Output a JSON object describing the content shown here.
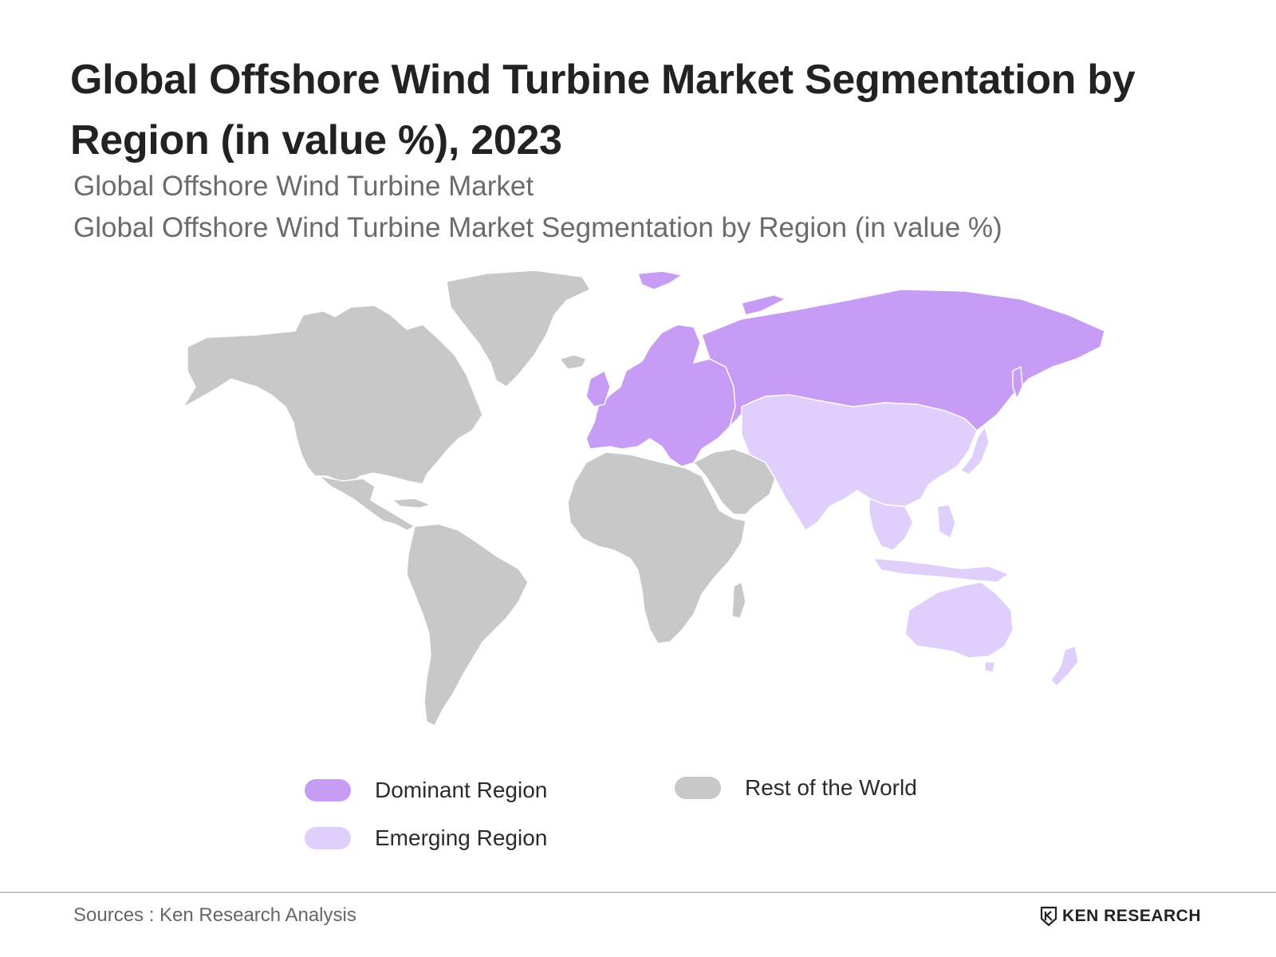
{
  "header": {
    "title": "Global Offshore Wind Turbine Market Segmentation by Region (in value %), 2023",
    "subtitle_1": "Global Offshore Wind Turbine Market",
    "subtitle_2": "Global Offshore Wind Turbine Market Segmentation by Region (in value %)"
  },
  "colors": {
    "dominant": "#c79cf5",
    "emerging": "#e0cffc",
    "rest": "#c8c8c8",
    "border": "#ffffff"
  },
  "map": {
    "projection": "world",
    "regions": [
      {
        "name": "North America",
        "category": "rest"
      },
      {
        "name": "Greenland",
        "category": "rest"
      },
      {
        "name": "Central America & Caribbean",
        "category": "rest"
      },
      {
        "name": "South America",
        "category": "rest"
      },
      {
        "name": "Africa",
        "category": "rest"
      },
      {
        "name": "Middle East",
        "category": "rest"
      },
      {
        "name": "Europe",
        "category": "dominant"
      },
      {
        "name": "Russia",
        "category": "dominant"
      },
      {
        "name": "Svalbard",
        "category": "dominant"
      },
      {
        "name": "Asia",
        "category": "emerging"
      },
      {
        "name": "Southeast Asia",
        "category": "emerging"
      },
      {
        "name": "Japan",
        "category": "emerging"
      },
      {
        "name": "Australia",
        "category": "emerging"
      },
      {
        "name": "New Zealand",
        "category": "emerging"
      }
    ]
  },
  "legend": {
    "dominant_label": "Dominant Region",
    "emerging_label": "Emerging Region",
    "rest_label": "Rest of the World"
  },
  "footer": {
    "sources": "Sources : Ken Research Analysis",
    "logo_text": "KEN RESEARCH"
  }
}
